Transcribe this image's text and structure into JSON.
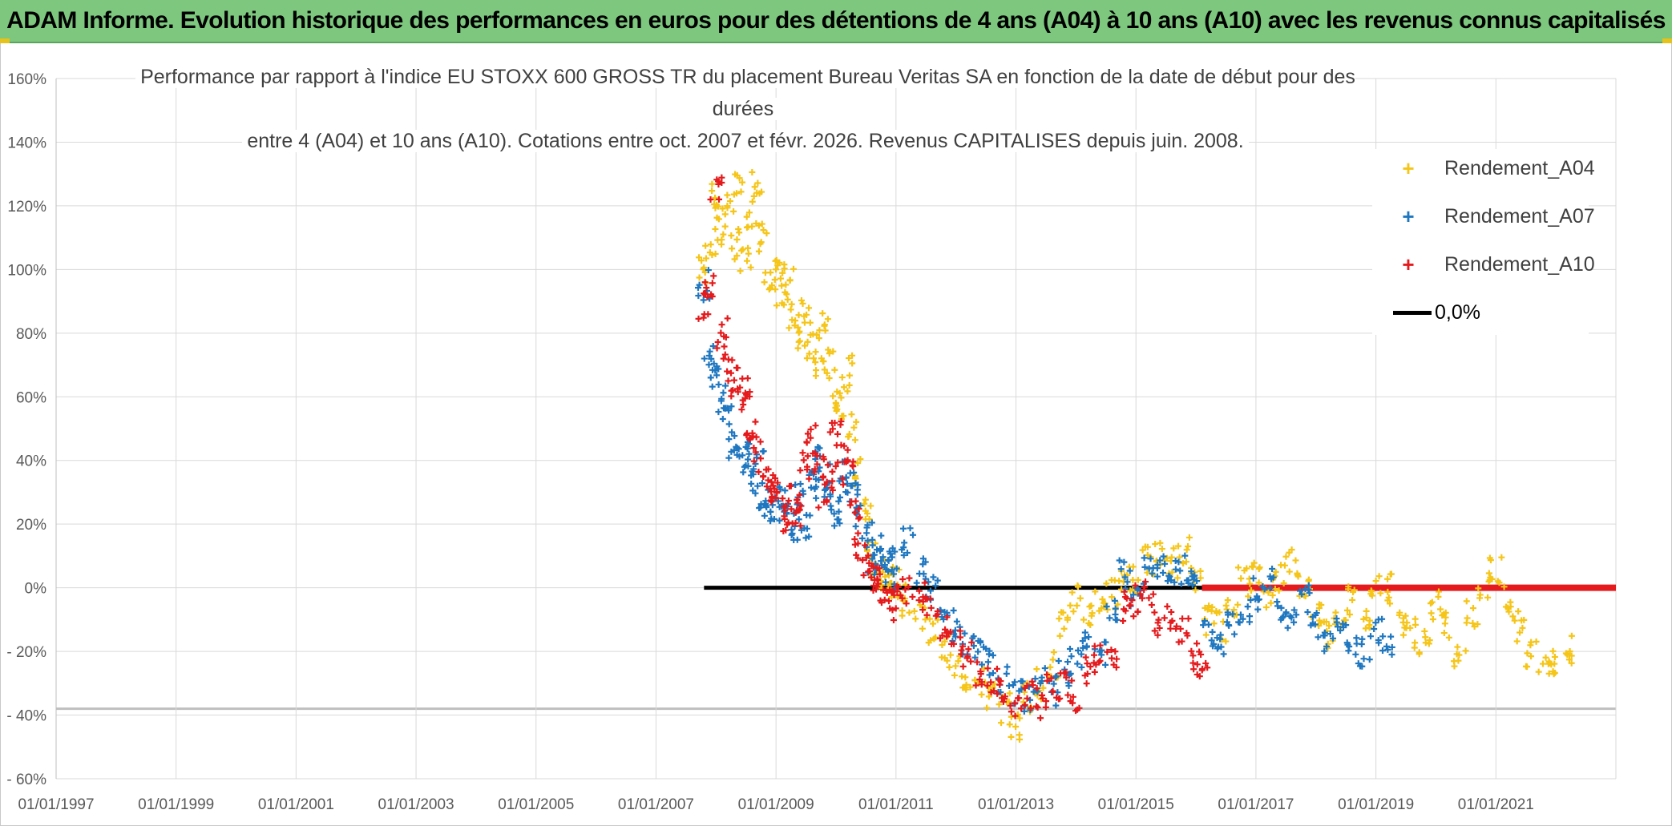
{
  "banner": {
    "title": "ADAM Informe. Evolution historique des performances en euros pour des détentions de 4 ans (A04) à 10 ans (A10) avec les revenus connus capitalisés"
  },
  "chart_data": {
    "type": "scatter",
    "title_line1": "Performance par rapport à l'indice EU STOXX 600 GROSS TR  du placement Bureau Veritas SA en fonction de la date de début pour des durées",
    "title_line2": "entre 4 (A04) et 10 ans (A10). Cotations entre oct. 2007 et févr. 2026. Revenus CAPITALISES depuis juin. 2008.",
    "x_tick_labels": [
      "01/01/1997",
      "01/01/1999",
      "01/01/2001",
      "01/01/2003",
      "01/01/2005",
      "01/01/2007",
      "01/01/2009",
      "01/01/2011",
      "01/01/2013",
      "01/01/2015",
      "01/01/2017",
      "01/01/2019",
      "01/01/2021"
    ],
    "xlim": [
      1997.0,
      2023.0
    ],
    "ylim": [
      -60,
      160
    ],
    "y_ticks": [
      -60,
      -40,
      -20,
      0,
      20,
      40,
      60,
      80,
      100,
      120,
      140,
      160
    ],
    "y_tick_labels": [
      "- 60%",
      "- 40%",
      "- 20%",
      "0%",
      "20%",
      "40%",
      "60%",
      "80%",
      "100%",
      "120%",
      "140%",
      "160%"
    ],
    "marker": "+",
    "series": [
      {
        "name": "Rendement_A04",
        "color": "#f5c518",
        "x": [
          2007.8,
          2007.9,
          2008.0,
          2008.1,
          2008.2,
          2008.3,
          2008.4,
          2008.5,
          2008.6,
          2008.7,
          2008.8,
          2008.9,
          2009.0,
          2009.1,
          2009.2,
          2009.3,
          2009.4,
          2009.5,
          2009.6,
          2009.7,
          2009.8,
          2009.9,
          2010.0,
          2010.1,
          2010.2,
          2010.3,
          2010.4,
          2010.5,
          2010.6,
          2010.7,
          2010.8,
          2010.9,
          2011.0,
          2011.2,
          2011.4,
          2011.6,
          2011.8,
          2012.0,
          2012.2,
          2012.4,
          2012.6,
          2012.8,
          2013.0,
          2013.2,
          2013.4,
          2013.6,
          2013.8,
          2014.0,
          2014.2,
          2014.4,
          2014.6,
          2014.8,
          2015.0,
          2015.2,
          2015.4,
          2015.6,
          2015.8,
          2016.0,
          2016.2,
          2016.4,
          2016.6,
          2016.8,
          2017.0,
          2017.2,
          2017.4,
          2017.6,
          2017.8,
          2018.0,
          2018.2,
          2018.4,
          2018.6,
          2018.8,
          2019.0,
          2019.2,
          2019.4,
          2019.6,
          2019.8,
          2020.0,
          2020.2,
          2020.4,
          2020.6,
          2020.8,
          2021.0,
          2021.2,
          2021.4,
          2021.6,
          2021.8,
          2022.0,
          2022.2
        ],
        "y": [
          100,
          108,
          122,
          112,
          120,
          108,
          125,
          103,
          118,
          128,
          110,
          95,
          98,
          90,
          100,
          85,
          80,
          88,
          75,
          70,
          82,
          70,
          60,
          58,
          68,
          50,
          36,
          24,
          12,
          4,
          2,
          4,
          2,
          -4,
          -8,
          -14,
          -20,
          -24,
          -28,
          -30,
          -34,
          -38,
          -44,
          -34,
          -30,
          -24,
          -12,
          -4,
          -8,
          -4,
          -2,
          4,
          2,
          8,
          10,
          8,
          12,
          2,
          -10,
          -12,
          -4,
          2,
          4,
          -2,
          4,
          8,
          0,
          -8,
          -14,
          -8,
          -4,
          -10,
          2,
          0,
          -10,
          -14,
          -18,
          -6,
          -12,
          -20,
          -8,
          0,
          6,
          -4,
          -12,
          -20,
          -22,
          -24,
          -20
        ]
      },
      {
        "name": "Rendement_A07",
        "color": "#1f77c0",
        "x": [
          2007.8,
          2007.9,
          2008.0,
          2008.1,
          2008.2,
          2008.3,
          2008.4,
          2008.5,
          2008.6,
          2008.7,
          2008.8,
          2008.9,
          2009.0,
          2009.1,
          2009.2,
          2009.3,
          2009.4,
          2009.5,
          2009.6,
          2009.7,
          2009.8,
          2009.9,
          2010.0,
          2010.1,
          2010.2,
          2010.3,
          2010.4,
          2010.5,
          2010.6,
          2010.7,
          2010.8,
          2010.9,
          2011.0,
          2011.2,
          2011.4,
          2011.6,
          2011.8,
          2012.0,
          2012.2,
          2012.4,
          2012.6,
          2012.8,
          2013.0,
          2013.2,
          2013.4,
          2013.6,
          2013.8,
          2014.0,
          2014.2,
          2014.4,
          2014.6,
          2014.8,
          2015.0,
          2015.2,
          2015.4,
          2015.6,
          2015.8,
          2016.0,
          2016.2,
          2016.4,
          2016.6,
          2016.8,
          2017.0,
          2017.2,
          2017.4,
          2017.6,
          2017.8,
          2018.0,
          2018.2,
          2018.4,
          2018.6,
          2018.8,
          2019.0,
          2019.2
        ],
        "y": [
          95,
          75,
          66,
          60,
          52,
          45,
          40,
          42,
          34,
          38,
          30,
          26,
          25,
          30,
          22,
          20,
          28,
          18,
          32,
          40,
          36,
          28,
          24,
          30,
          36,
          32,
          22,
          16,
          8,
          12,
          10,
          4,
          8,
          14,
          6,
          0,
          -6,
          -12,
          -16,
          -20,
          -24,
          -28,
          -32,
          -34,
          -30,
          -32,
          -26,
          -22,
          -16,
          -20,
          -8,
          4,
          -2,
          6,
          8,
          4,
          6,
          2,
          -14,
          -16,
          -10,
          -6,
          -2,
          2,
          -6,
          -10,
          -4,
          -12,
          -16,
          -12,
          -18,
          -20,
          -14,
          -20
        ]
      },
      {
        "name": "Rendement_A10",
        "color": "#e41a1c",
        "x": [
          2007.8,
          2007.9,
          2008.0,
          2008.1,
          2008.2,
          2008.3,
          2008.4,
          2008.5,
          2008.6,
          2008.7,
          2008.8,
          2008.9,
          2009.0,
          2009.1,
          2009.2,
          2009.3,
          2009.4,
          2009.5,
          2009.6,
          2009.7,
          2009.8,
          2009.9,
          2010.0,
          2010.1,
          2010.2,
          2010.3,
          2010.4,
          2010.5,
          2010.6,
          2010.7,
          2010.8,
          2010.9,
          2011.0,
          2011.2,
          2011.4,
          2011.6,
          2011.8,
          2012.0,
          2012.2,
          2012.4,
          2012.6,
          2012.8,
          2013.0,
          2013.2,
          2013.4,
          2013.6,
          2013.8,
          2014.0,
          2014.2,
          2014.4,
          2014.6,
          2014.8,
          2015.0,
          2015.2,
          2015.4,
          2015.6,
          2015.8,
          2016.0,
          2016.1
        ],
        "y": [
          88,
          95,
          125,
          80,
          72,
          65,
          58,
          62,
          50,
          44,
          38,
          32,
          30,
          26,
          22,
          28,
          24,
          38,
          46,
          40,
          30,
          34,
          48,
          44,
          36,
          24,
          14,
          8,
          4,
          2,
          -2,
          -6,
          -4,
          0,
          -2,
          -8,
          -14,
          -18,
          -22,
          -26,
          -30,
          -33,
          -36,
          -34,
          -36,
          -32,
          -30,
          -34,
          -26,
          -22,
          -24,
          -6,
          -4,
          -2,
          -10,
          -8,
          -14,
          -22,
          -26
        ]
      }
    ],
    "zero_line": {
      "name": "0,0%",
      "color": "#000000",
      "y": 0,
      "x_start": 2007.8,
      "x_end": 2023.0
    },
    "red_flat_line": {
      "color": "#e41a1c",
      "y": 0,
      "x_start": 2016.1,
      "x_end": 2023.0
    }
  },
  "legend": {
    "items": [
      {
        "label": "Rendement_A04",
        "color": "#f5c518"
      },
      {
        "label": "Rendement_A07",
        "color": "#1f77c0"
      },
      {
        "label": "Rendement_A10",
        "color": "#e41a1c"
      },
      {
        "label": "0,0%",
        "color": "#000000"
      }
    ],
    "marker_glyph": "+"
  }
}
